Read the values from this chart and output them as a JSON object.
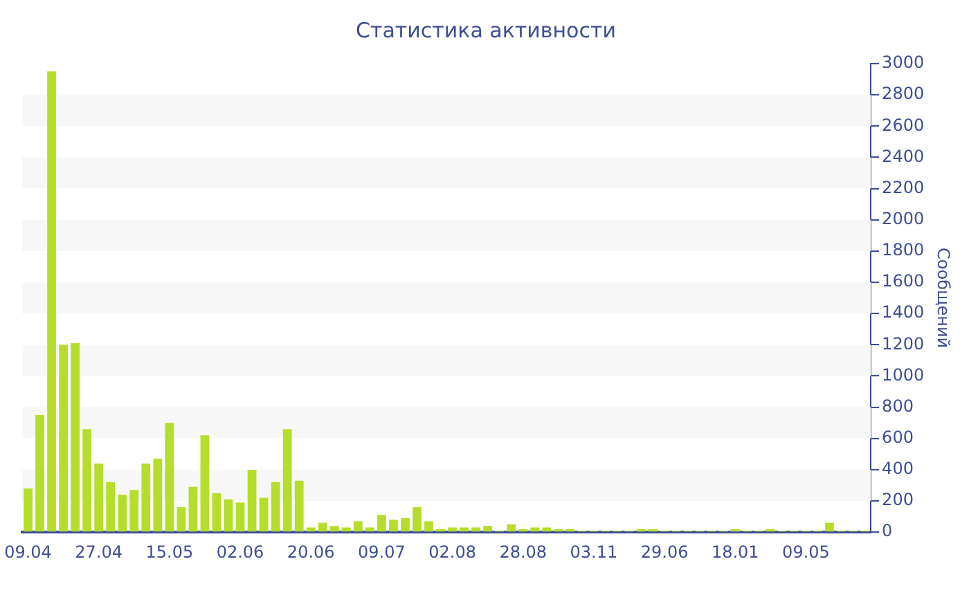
{
  "chart_data": {
    "type": "bar",
    "title": "Статистика активности",
    "ylabel": "Сообщений",
    "categories": [
      "09.04",
      null,
      null,
      null,
      null,
      null,
      "27.04",
      null,
      null,
      null,
      null,
      null,
      "15.05",
      null,
      null,
      null,
      null,
      null,
      "02.06",
      null,
      null,
      null,
      null,
      null,
      "20.06",
      null,
      null,
      null,
      null,
      null,
      "09.07",
      null,
      null,
      null,
      null,
      null,
      "02.08",
      null,
      null,
      null,
      null,
      null,
      "28.08",
      null,
      null,
      null,
      null,
      null,
      "03.11",
      null,
      null,
      null,
      null,
      null,
      "29.06",
      null,
      null,
      null,
      null,
      null,
      "18.01",
      null,
      null,
      null,
      null,
      null,
      "09.05",
      null,
      null,
      null,
      null,
      null
    ],
    "values": [
      280,
      750,
      2950,
      1200,
      1210,
      660,
      440,
      320,
      240,
      270,
      440,
      470,
      700,
      160,
      290,
      620,
      250,
      210,
      190,
      400,
      220,
      320,
      660,
      330,
      30,
      60,
      40,
      30,
      70,
      30,
      110,
      80,
      90,
      160,
      70,
      20,
      30,
      30,
      30,
      40,
      10,
      50,
      20,
      30,
      30,
      20,
      20,
      10,
      10,
      10,
      10,
      10,
      20,
      20,
      10,
      10,
      10,
      10,
      10,
      10,
      20,
      10,
      10,
      20,
      10,
      10,
      10,
      10,
      60,
      10,
      10,
      10
    ],
    "color": "#b5dd2b",
    "ylim": [
      0,
      3000
    ],
    "yticks": [
      0,
      200,
      400,
      600,
      800,
      1000,
      1200,
      1400,
      1600,
      1800,
      2000,
      2200,
      2400,
      2600,
      2800,
      3000
    ],
    "bands": [
      {
        "axis": "y",
        "from": 200,
        "to": 400,
        "color": "#f7f7f7"
      },
      {
        "axis": "y",
        "from": 600,
        "to": 800,
        "color": "#f7f7f7"
      },
      {
        "axis": "y",
        "from": 1000,
        "to": 1200,
        "color": "#f7f7f7"
      },
      {
        "axis": "y",
        "from": 1400,
        "to": 1600,
        "color": "#f7f7f7"
      },
      {
        "axis": "y",
        "from": 1800,
        "to": 2000,
        "color": "#f7f7f7"
      },
      {
        "axis": "y",
        "from": 2200,
        "to": 2400,
        "color": "#f7f7f7"
      },
      {
        "axis": "y",
        "from": 2600,
        "to": 2800,
        "color": "#f7f7f7"
      }
    ],
    "grid": false,
    "legend": false
  }
}
